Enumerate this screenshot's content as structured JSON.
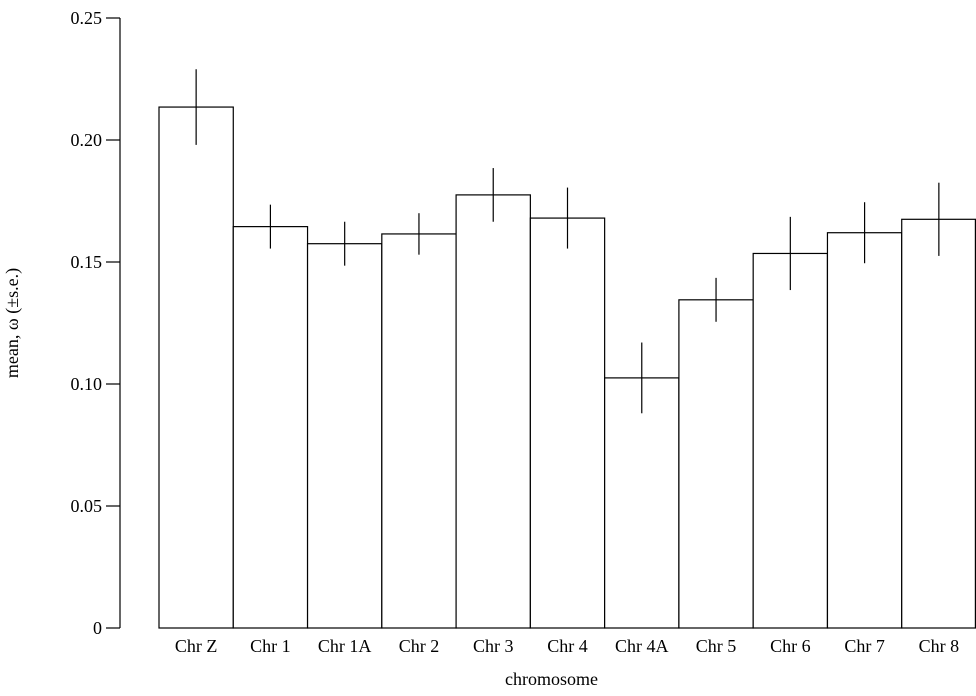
{
  "chart_data": {
    "type": "bar",
    "title": "",
    "xlabel": "chromosome",
    "ylabel": "mean, ω (±s.e.)",
    "ylim": [
      0,
      0.25
    ],
    "yticks": [
      "0",
      "0.05",
      "0.10",
      "0.15",
      "0.20",
      "0.25"
    ],
    "categories": [
      "Chr Z",
      "Chr 1",
      "Chr 1A",
      "Chr 2",
      "Chr 3",
      "Chr 4",
      "Chr 4A",
      "Chr 5",
      "Chr 6",
      "Chr 7",
      "Chr 8"
    ],
    "values": [
      0.2135,
      0.1645,
      0.1575,
      0.1615,
      0.1775,
      0.168,
      0.1025,
      0.1345,
      0.1535,
      0.162,
      0.1675
    ],
    "errors": [
      0.0155,
      0.009,
      0.009,
      0.0085,
      0.011,
      0.0125,
      0.0145,
      0.009,
      0.015,
      0.0125,
      0.015
    ],
    "grid": false,
    "colors": {
      "bar_fill": "#ffffff",
      "stroke": "#000000"
    }
  }
}
